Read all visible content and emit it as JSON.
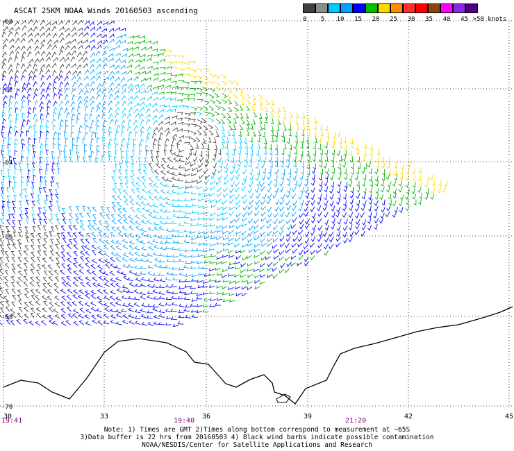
{
  "title": "ASCAT 25KM NOAA Winds 20160503 ascending",
  "legend": {
    "colors": [
      "#404040",
      "#8c8c8c",
      "#00c8ff",
      "#00a0ff",
      "#0000ff",
      "#00c000",
      "#ffd700",
      "#ff8c00",
      "#ff3030",
      "#ff0000",
      "#8b4513",
      "#ff00ff",
      "#8a2be2",
      "#4b0082"
    ],
    "labels": [
      "0",
      "5",
      "10",
      "15",
      "20",
      "25",
      "30",
      "35",
      "40",
      "45",
      ">50 knots"
    ]
  },
  "map": {
    "lat_ticks": [
      "-60",
      "-62",
      "-64",
      "-66",
      "-68",
      "-70"
    ],
    "lon_ticks": [
      "30",
      "33",
      "36",
      "39",
      "42",
      "45"
    ],
    "time_labels": [
      "19:41",
      "19:40",
      "21:20"
    ]
  },
  "notes": [
    "Note: 1) Times are GMT 2)Times along bottom correspond to measurement at ~65S",
    "3)Data buffer is 22 hrs from 20160503 4) Black wind barbs indicate possible contamination",
    "NOAA/NESDIS/Center for Satellite Applications and Research"
  ]
}
